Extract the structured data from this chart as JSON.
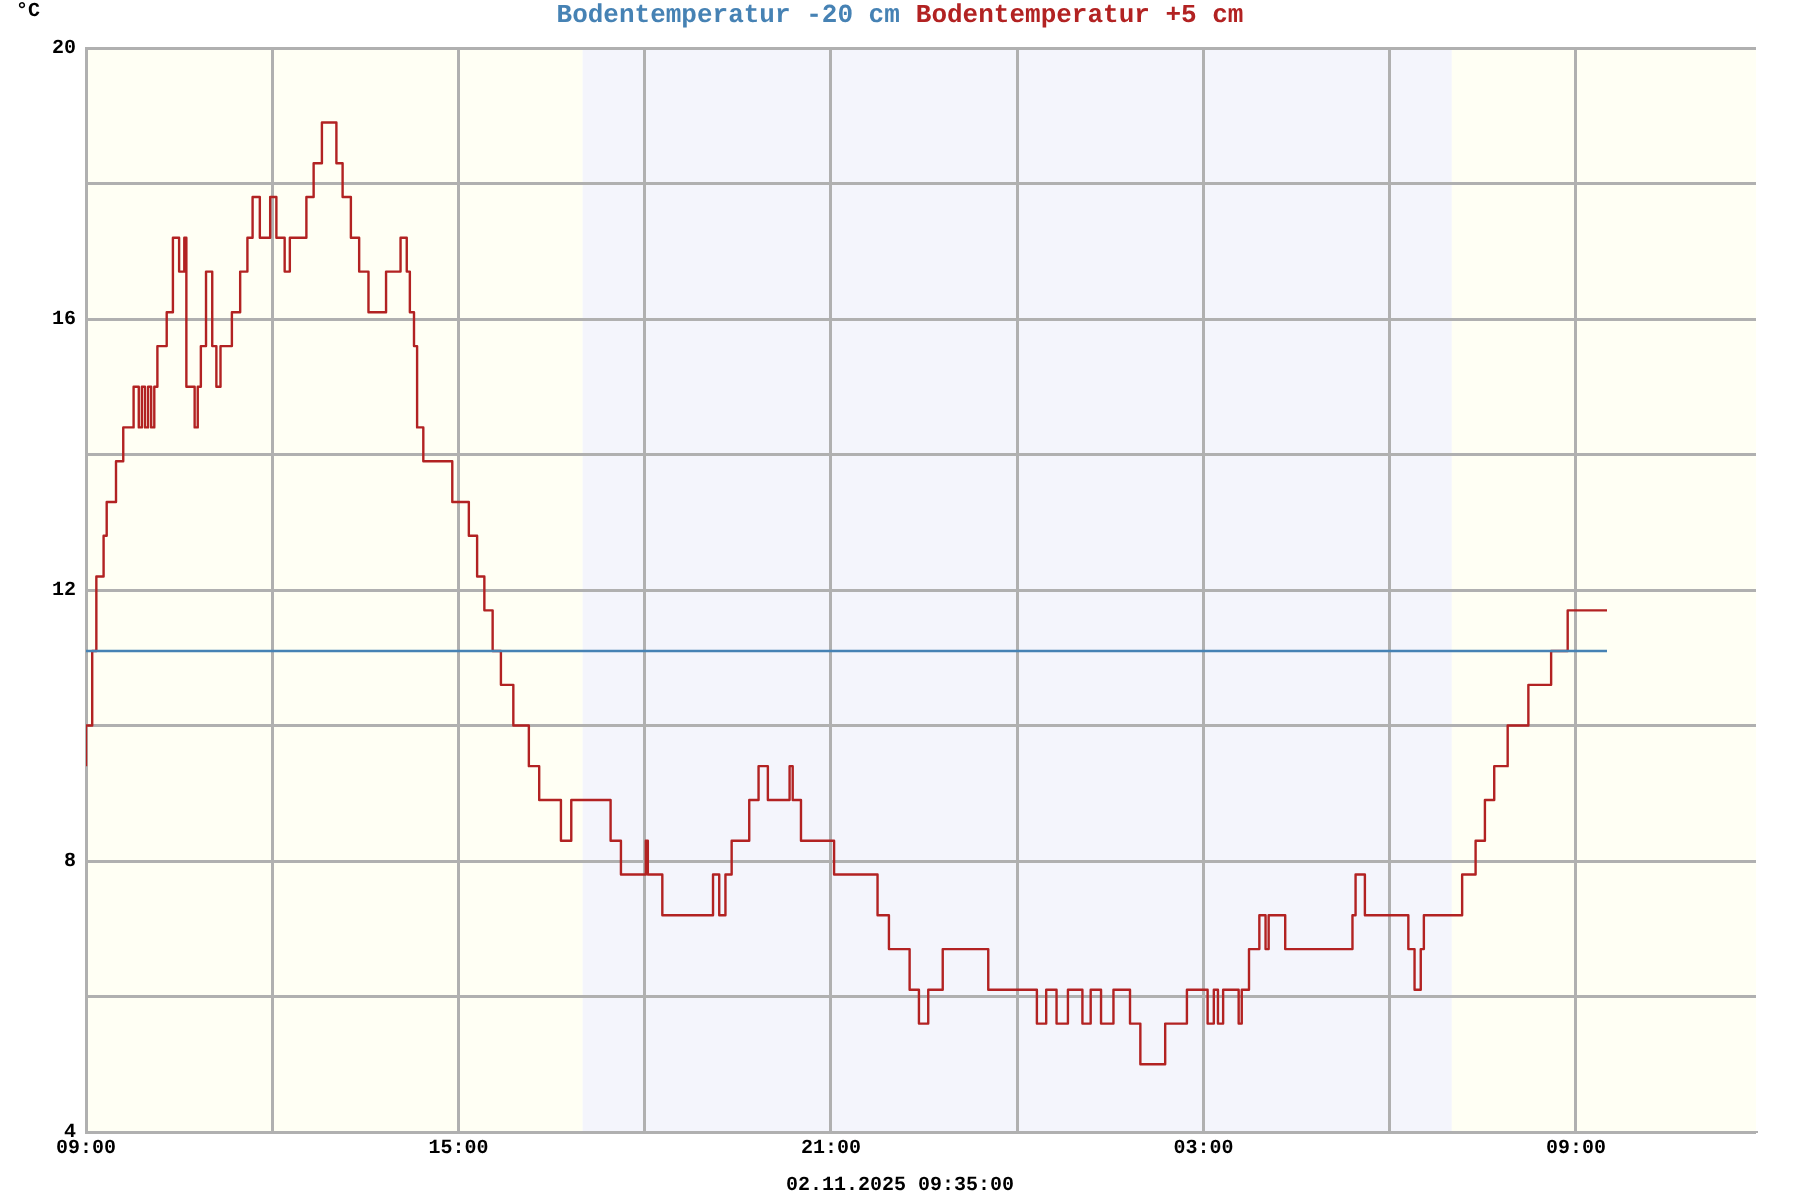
{
  "chart_data": {
    "type": "step",
    "ylabel": "°C",
    "annotations": [
      "02.11.2025 09:35:00"
    ],
    "xlim": [
      "2025-11-01T09:00",
      "2025-11-02T11:54"
    ],
    "xticks": [
      {
        "value": "2025-11-01T09:00",
        "label": "09:00"
      },
      {
        "value": "2025-11-01T12:00",
        "label": null
      },
      {
        "value": "2025-11-01T15:00",
        "label": "15:00"
      },
      {
        "value": "2025-11-01T18:00",
        "label": null
      },
      {
        "value": "2025-11-01T21:00",
        "label": "21:00"
      },
      {
        "value": "2025-11-02T00:00",
        "label": null
      },
      {
        "value": "2025-11-02T03:00",
        "label": "03:00"
      },
      {
        "value": "2025-11-02T06:00",
        "label": null
      },
      {
        "value": "2025-11-02T09:00",
        "label": "09:00"
      }
    ],
    "ylim": [
      4,
      20
    ],
    "yticks": [
      4,
      {
        "value": 6,
        "label": null
      },
      8,
      {
        "value": 10,
        "label": null
      },
      12,
      {
        "value": 14,
        "label": null
      },
      16,
      {
        "value": 18,
        "label": null
      },
      20
    ],
    "grid": true,
    "legend": "top",
    "marker": "none",
    "bands": [
      {
        "axis": "x",
        "from": "2025-11-01T09:00",
        "to": "2025-11-01T17:00",
        "color": "#fffff4"
      },
      {
        "axis": "x",
        "from": "2025-11-01T17:00",
        "to": "2025-11-02T07:00",
        "color": "#f4f5fc"
      },
      {
        "axis": "x",
        "from": "2025-11-02T07:00",
        "to": "2025-11-02T11:54",
        "color": "#fffff4"
      }
    ],
    "series": [
      {
        "name": "Bodentemperatur -20 cm",
        "color": "#4682b4",
        "x": [
          "2025-11-01T09:00",
          "2025-11-02T09:30"
        ],
        "values": [
          11.1,
          11.1
        ]
      },
      {
        "name": "Bodentemperatur +5 cm",
        "color": "#b22222",
        "x": [
          "2025-11-01T09:00",
          "2025-11-01T09:06",
          "2025-11-01T09:10",
          "2025-11-01T09:17",
          "2025-11-01T09:20",
          "2025-11-01T09:29",
          "2025-11-01T09:36",
          "2025-11-01T09:46",
          "2025-11-01T09:51",
          "2025-11-01T09:54",
          "2025-11-01T09:57",
          "2025-11-01T10:00",
          "2025-11-01T10:03",
          "2025-11-01T10:06",
          "2025-11-01T10:09",
          "2025-11-01T10:12",
          "2025-11-01T10:18",
          "2025-11-01T10:24",
          "2025-11-01T10:30",
          "2025-11-01T10:35",
          "2025-11-01T10:37",
          "2025-11-01T10:45",
          "2025-11-01T10:48",
          "2025-11-01T10:51",
          "2025-11-01T10:56",
          "2025-11-01T11:02",
          "2025-11-01T11:06",
          "2025-11-01T11:10",
          "2025-11-01T11:21",
          "2025-11-01T11:29",
          "2025-11-01T11:36",
          "2025-11-01T11:41",
          "2025-11-01T11:48",
          "2025-11-01T11:58",
          "2025-11-01T12:04",
          "2025-11-01T12:12",
          "2025-11-01T12:17",
          "2025-11-01T12:33",
          "2025-11-01T12:40",
          "2025-11-01T12:48",
          "2025-11-01T13:02",
          "2025-11-01T13:08",
          "2025-11-01T13:16",
          "2025-11-01T13:24",
          "2025-11-01T13:33",
          "2025-11-01T13:50",
          "2025-11-01T14:04",
          "2025-11-01T14:10",
          "2025-11-01T14:13",
          "2025-11-01T14:17",
          "2025-11-01T14:20",
          "2025-11-01T14:26",
          "2025-11-01T14:54",
          "2025-11-01T15:10",
          "2025-11-01T15:18",
          "2025-11-01T15:25",
          "2025-11-01T15:33",
          "2025-11-01T15:41",
          "2025-11-01T15:53",
          "2025-11-01T16:08",
          "2025-11-01T16:18",
          "2025-11-01T16:39",
          "2025-11-01T16:49",
          "2025-11-01T17:27",
          "2025-11-01T17:37",
          "2025-11-01T18:01",
          "2025-11-01T18:03",
          "2025-11-01T18:17",
          "2025-11-01T19:06",
          "2025-11-01T19:12",
          "2025-11-01T19:18",
          "2025-11-01T19:24",
          "2025-11-01T19:41",
          "2025-11-01T19:50",
          "2025-11-01T19:59",
          "2025-11-01T20:20",
          "2025-11-01T20:23",
          "2025-11-01T20:31",
          "2025-11-01T21:03",
          "2025-11-01T21:45",
          "2025-11-01T21:56",
          "2025-11-01T22:16",
          "2025-11-01T22:25",
          "2025-11-01T22:34",
          "2025-11-01T22:48",
          "2025-11-01T23:32",
          "2025-11-02T00:19",
          "2025-11-02T00:28",
          "2025-11-02T00:38",
          "2025-11-02T00:49",
          "2025-11-02T01:03",
          "2025-11-02T01:11",
          "2025-11-02T01:21",
          "2025-11-02T01:33",
          "2025-11-02T01:49",
          "2025-11-02T01:59",
          "2025-11-02T02:23",
          "2025-11-02T02:44",
          "2025-11-02T03:04",
          "2025-11-02T03:10",
          "2025-11-02T03:14",
          "2025-11-02T03:19",
          "2025-11-02T03:34",
          "2025-11-02T03:37",
          "2025-11-02T03:44",
          "2025-11-02T03:54",
          "2025-11-02T04:00",
          "2025-11-02T04:03",
          "2025-11-02T04:19",
          "2025-11-02T05:24",
          "2025-11-02T05:27",
          "2025-11-02T05:36",
          "2025-11-02T06:18",
          "2025-11-02T06:24",
          "2025-11-02T06:30",
          "2025-11-02T06:33",
          "2025-11-02T07:10",
          "2025-11-02T07:23",
          "2025-11-02T07:32",
          "2025-11-02T07:41",
          "2025-11-02T07:54",
          "2025-11-02T08:14",
          "2025-11-02T08:36",
          "2025-11-02T08:52",
          "2025-11-02T09:11",
          "2025-11-02T09:30"
        ],
        "values": [
          9.4,
          10.0,
          11.1,
          12.2,
          12.8,
          13.3,
          13.9,
          14.4,
          15.0,
          14.4,
          15.0,
          14.4,
          15.0,
          14.4,
          15.0,
          15.6,
          15.6,
          16.1,
          17.2,
          16.7,
          17.2,
          15.0,
          14.4,
          15.0,
          15.6,
          16.7,
          15.6,
          15.0,
          15.6,
          16.1,
          16.7,
          17.2,
          17.8,
          17.2,
          17.8,
          17.2,
          16.7,
          17.2,
          17.8,
          18.3,
          18.9,
          18.3,
          17.8,
          17.2,
          16.7,
          16.1,
          16.7,
          17.2,
          16.7,
          16.1,
          15.6,
          14.4,
          13.9,
          13.3,
          12.8,
          12.2,
          11.7,
          11.1,
          10.6,
          10.0,
          9.4,
          8.9,
          8.3,
          8.9,
          8.3,
          7.8,
          8.3,
          7.8,
          7.2,
          7.8,
          7.2,
          7.8,
          8.3,
          8.9,
          9.4,
          8.9,
          9.4,
          8.9,
          8.3,
          7.8,
          7.2,
          6.7,
          6.1,
          5.6,
          6.1,
          6.7,
          6.1,
          5.6,
          6.1,
          5.6,
          6.1,
          5.6,
          6.1,
          5.6,
          6.1,
          5.6,
          5.0,
          5.6,
          6.1,
          5.6,
          6.1,
          5.6,
          6.1,
          5.6,
          6.1,
          6.7,
          7.2,
          6.7,
          7.2,
          6.7,
          7.2,
          7.8,
          7.2,
          6.7,
          6.1,
          6.7,
          7.2,
          7.8,
          8.3,
          8.9,
          9.4,
          10.0,
          10.6,
          11.1,
          11.7,
          11.7
        ]
      }
    ]
  }
}
